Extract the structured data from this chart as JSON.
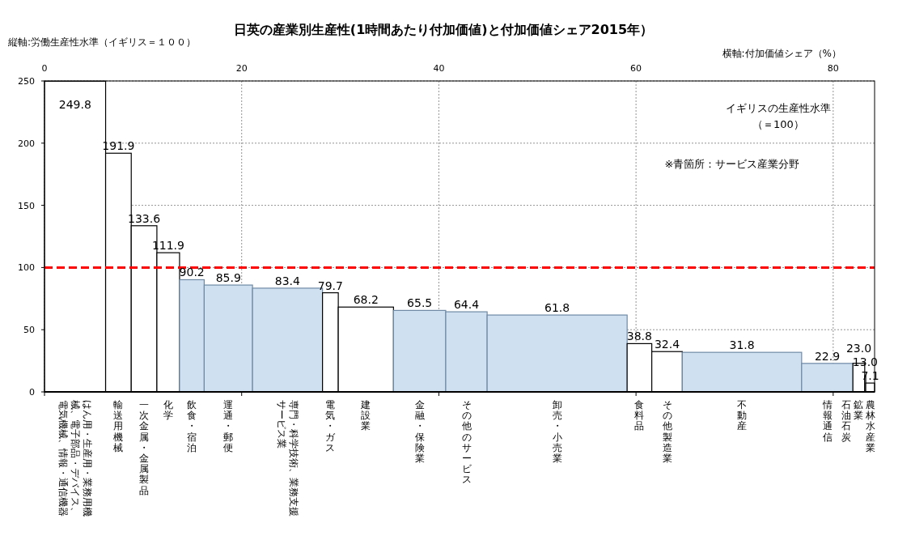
{
  "chart_data": {
    "type": "histogram",
    "title": "日英の産業別生産性(1時間あたり付加価値)と付加価値シェア2015年）",
    "ylabel": "縦軸:労働生産性水準（イギリス＝１００）",
    "xlabel": "横軸:付加価値シェア（%）",
    "categories": [
      "はん用・生産用・業務用機械、電子部品・デバイス、電気機械、情報・通信機器",
      "輸送用機械",
      "一次金属・金属製品",
      "化学",
      "飲食・宿泊",
      "運通・郵便",
      "専門・科学技術、業務支援サービス業",
      "電気・ガス",
      "建設業",
      "金融・保険業",
      "その他のサービス",
      "卸売・小売業",
      "食料品",
      "その他製造業",
      "不動産",
      "情報通信",
      "石油石炭",
      "鉱業",
      "農林水産業"
    ],
    "bins": [
      0,
      6.2,
      8.8,
      11.4,
      13.7,
      16.2,
      21.1,
      28.2,
      29.8,
      35.4,
      40.7,
      44.9,
      59.1,
      61.6,
      64.7,
      76.8,
      82.0,
      83.2,
      83.3,
      84.2
    ],
    "values": [
      249.8,
      191.9,
      133.6,
      111.9,
      90.2,
      85.9,
      83.4,
      79.7,
      68.2,
      65.5,
      64.4,
      61.8,
      38.8,
      32.4,
      31.8,
      22.9,
      23.0,
      13.0,
      7.1
    ],
    "value_labels": [
      "249.8",
      "191.9",
      "133.6",
      "111.9",
      "90.2",
      "85.9",
      "83.4",
      "79.7",
      "68.2",
      "65.5",
      "64.4",
      "61.8",
      "38.8",
      "32.4",
      "31.8",
      "22.9",
      "23.0",
      "13.0",
      "7.1"
    ],
    "colors": [
      "#ffffff",
      "#ffffff",
      "#ffffff",
      "#ffffff",
      "#cfe0f1",
      "#cfe0f1",
      "#cfe0f1",
      "#ffffff",
      "#ffffff",
      "#cfe0f1",
      "#cfe0f1",
      "#cfe0f1",
      "#ffffff",
      "#ffffff",
      "#cfe0f1",
      "#cfe0f1",
      "#ffffff",
      "#ffffff",
      "#ffffff"
    ],
    "xlim": [
      0,
      84.2
    ],
    "xticks": [
      0,
      20,
      40,
      60,
      80
    ],
    "ylim": [
      0,
      250
    ],
    "yticks": [
      0,
      50,
      100,
      150,
      200,
      250
    ],
    "grid": true,
    "ref_lines": [
      {
        "axis": "y",
        "value": 100,
        "color": "#ff0000",
        "line_style": "dashed"
      }
    ],
    "annotations": [
      "イギリスの生産性水準",
      "（＝100）",
      "※青箇所：サービス産業分野"
    ]
  }
}
